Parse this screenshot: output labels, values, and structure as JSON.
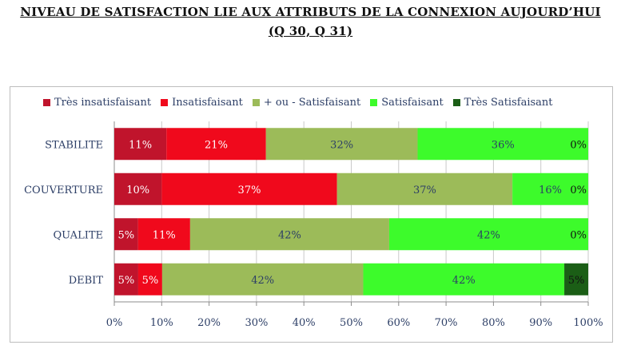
{
  "title": {
    "line1": "NIVEAU DE SATISFACTION LIE AUX ATTRIBUTS DE LA CONNEXION AUJOURD’HUI",
    "line2": "(Q 30, Q 31)"
  },
  "chart_data": {
    "type": "bar",
    "orientation": "horizontal-stacked-100",
    "categories": [
      "STABILITE",
      "COUVERTURE",
      "QUALITE",
      "DEBIT"
    ],
    "series": [
      {
        "name": "Très insatisfaisant",
        "color": "#c0142c",
        "values": [
          11,
          10,
          5,
          5
        ],
        "labels": [
          "11%",
          "10%",
          "5%",
          "5%"
        ]
      },
      {
        "name": "Insatisfaisant",
        "color": "#f0091c",
        "values": [
          21,
          37,
          11,
          5
        ],
        "labels": [
          "21%",
          "37%",
          "11%",
          "5%"
        ]
      },
      {
        "name": "+ ou - Satisfaisant",
        "color": "#9cbb59",
        "values": [
          32,
          37,
          42,
          42
        ],
        "labels": [
          "32%",
          "37%",
          "42%",
          "42%"
        ]
      },
      {
        "name": "Satisfaisant",
        "color": "#3dfb2b",
        "values": [
          36,
          16,
          42,
          42
        ],
        "labels": [
          "36%",
          "16%",
          "42%",
          "42%"
        ]
      },
      {
        "name": "Très Satisfaisant",
        "color": "#1b5e16",
        "values": [
          0,
          0,
          0,
          5
        ],
        "labels": [
          "0%",
          "0%",
          "0%",
          "5%"
        ]
      }
    ],
    "xlim": [
      0,
      100
    ],
    "xticks": [
      "0%",
      "10%",
      "20%",
      "30%",
      "40%",
      "50%",
      "60%",
      "70%",
      "80%",
      "90%",
      "100%"
    ],
    "legend_position": "top",
    "grid": "vertical",
    "label_colors": {
      "dark": "#ffffff",
      "light": "#2c3e66"
    }
  }
}
